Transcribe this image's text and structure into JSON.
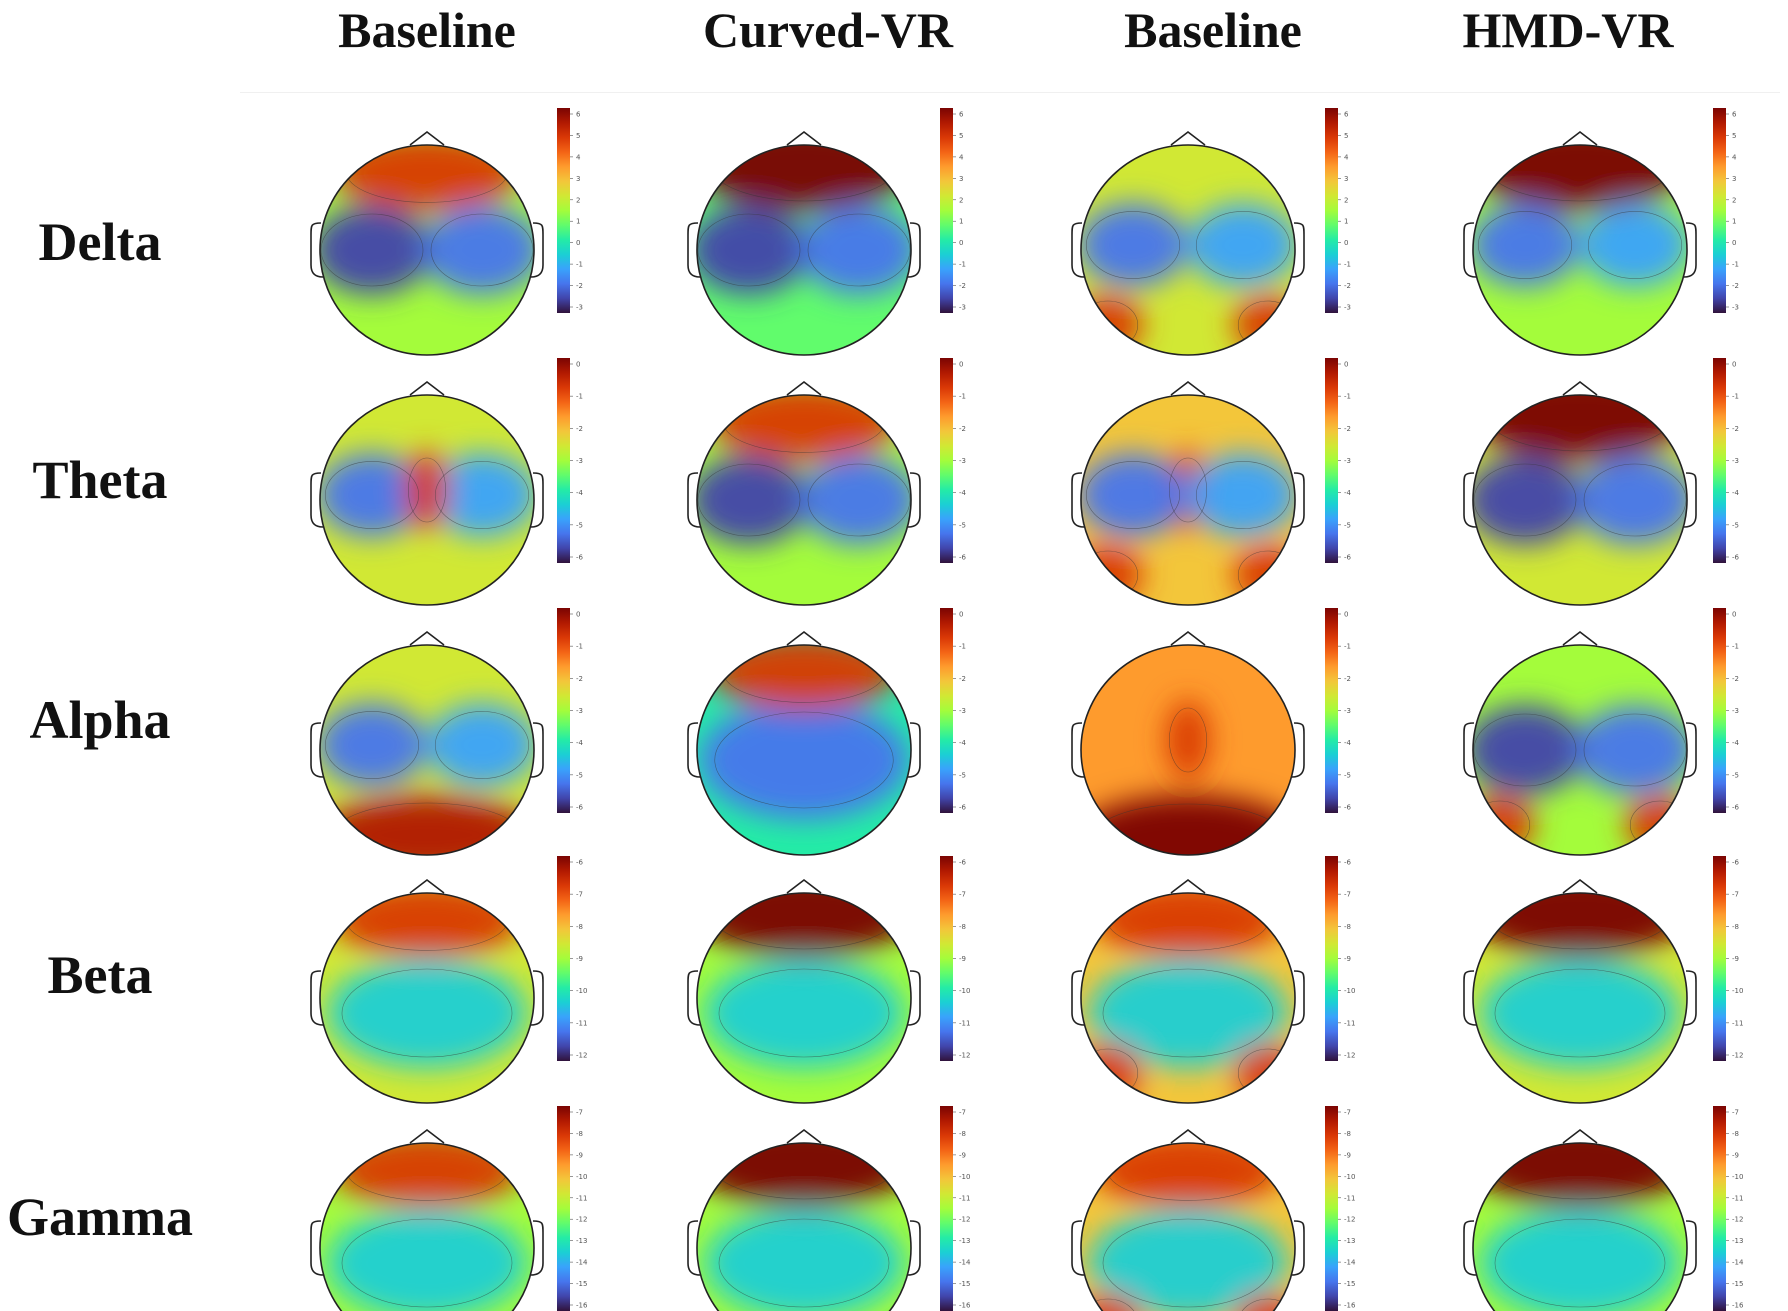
{
  "colors": {
    "jet_stops": [
      "#30123b",
      "#4145ab",
      "#4675ed",
      "#39a2fc",
      "#1bcfd4",
      "#24eca6",
      "#61fc6c",
      "#a4fc3b",
      "#d1e834",
      "#f3c63a",
      "#fe9b2d",
      "#f36315",
      "#d93806",
      "#b11901",
      "#7a0403"
    ],
    "outline": "#222222",
    "contour": "#333333"
  },
  "chart_data": {
    "type": "heatmap",
    "description": "EEG scalp topographic maps",
    "columns": [
      "Baseline",
      "Curved-VR",
      "Baseline",
      "HMD-VR"
    ],
    "rows": [
      {
        "band": "Delta",
        "colorbar_ticks": [
          "6",
          "5",
          "4",
          "3",
          "2",
          "1",
          "0",
          "-1",
          "-2",
          "-3"
        ],
        "range": [
          -3,
          6
        ]
      },
      {
        "band": "Theta",
        "colorbar_ticks": [
          "0",
          "-1",
          "-2",
          "-3",
          "-4",
          "-5",
          "-6"
        ],
        "range": [
          -6,
          0
        ]
      },
      {
        "band": "Alpha",
        "colorbar_ticks": [
          "0",
          "-1",
          "-2",
          "-3",
          "-4",
          "-5",
          "-6"
        ],
        "range": [
          -6,
          0
        ]
      },
      {
        "band": "Beta",
        "colorbar_ticks": [
          "-6",
          "-7",
          "-8",
          "-9",
          "-10",
          "-11",
          "-12"
        ],
        "range": [
          -12,
          -6
        ]
      },
      {
        "band": "Gamma",
        "colorbar_ticks": [
          "-7",
          "-8",
          "-9",
          "-10",
          "-11",
          "-12",
          "-13",
          "-14",
          "-15",
          "-16"
        ],
        "range": [
          -16,
          -7
        ]
      }
    ]
  }
}
